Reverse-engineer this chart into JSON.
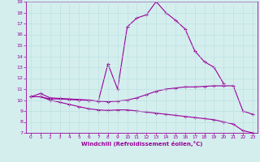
{
  "xlabel": "Windchill (Refroidissement éolien,°C)",
  "bg_color": "#d4eeee",
  "line_color": "#990099",
  "grid_color": "#b8dede",
  "xlim": [
    -0.5,
    23.5
  ],
  "ylim": [
    7,
    19
  ],
  "xticks": [
    0,
    1,
    2,
    3,
    4,
    5,
    6,
    7,
    8,
    9,
    10,
    11,
    12,
    13,
    14,
    15,
    16,
    17,
    18,
    19,
    20,
    21,
    22,
    23
  ],
  "yticks": [
    7,
    8,
    9,
    10,
    11,
    12,
    13,
    14,
    15,
    16,
    17,
    18,
    19
  ],
  "line1_x": [
    0,
    1,
    2,
    3,
    4,
    5,
    6,
    7,
    8,
    9,
    10,
    11,
    12,
    13,
    14,
    15,
    16,
    17,
    18,
    19,
    20
  ],
  "line1_y": [
    10.3,
    10.6,
    10.2,
    10.15,
    10.1,
    10.05,
    10.0,
    9.9,
    13.3,
    11.0,
    16.7,
    17.5,
    17.8,
    19.0,
    18.0,
    17.3,
    16.5,
    14.5,
    13.5,
    13.0,
    11.5
  ],
  "line2_x": [
    0,
    1,
    2,
    3,
    4,
    5,
    6,
    7,
    8,
    9,
    10,
    11,
    12,
    13,
    14,
    15,
    16,
    17,
    18,
    19,
    20,
    21,
    22,
    23
  ],
  "line2_y": [
    10.3,
    10.3,
    10.1,
    10.1,
    10.05,
    10.0,
    9.95,
    9.9,
    9.85,
    9.9,
    10.0,
    10.2,
    10.5,
    10.8,
    11.0,
    11.1,
    11.2,
    11.2,
    11.25,
    11.3,
    11.3,
    11.3,
    9.0,
    8.7
  ],
  "line3_x": [
    0,
    1,
    2,
    3,
    4,
    5,
    6,
    7,
    8,
    9,
    10,
    11,
    12,
    13,
    14,
    15,
    16,
    17,
    18,
    19,
    20,
    21,
    22,
    23
  ],
  "line3_y": [
    10.3,
    10.3,
    10.0,
    9.8,
    9.6,
    9.4,
    9.2,
    9.1,
    9.05,
    9.1,
    9.1,
    9.0,
    8.9,
    8.8,
    8.7,
    8.6,
    8.5,
    8.4,
    8.3,
    8.2,
    8.0,
    7.8,
    7.2,
    7.0
  ]
}
